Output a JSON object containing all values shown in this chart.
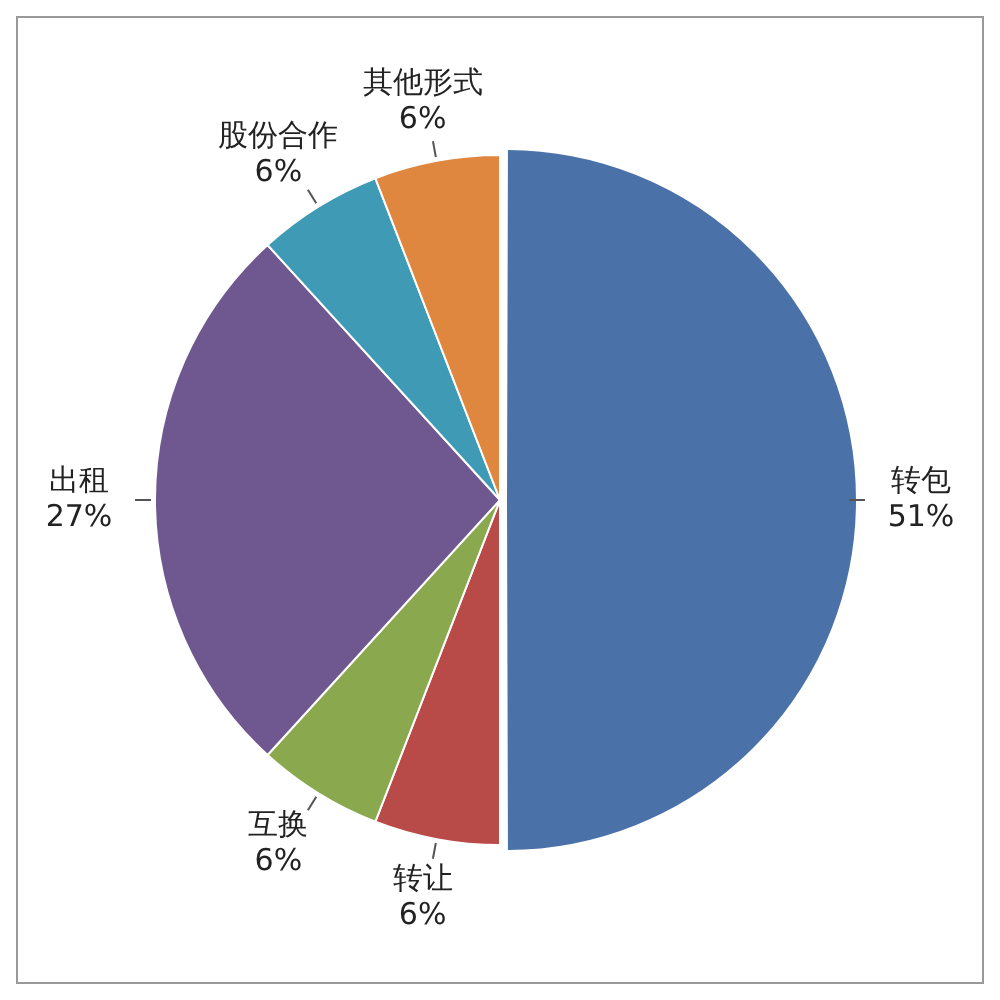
{
  "chart_data": {
    "type": "pie",
    "categories": [
      "转包",
      "转让",
      "互换",
      "出租",
      "股份合作",
      "其他形式"
    ],
    "values": [
      51,
      6,
      6,
      27,
      6,
      6
    ],
    "value_labels": [
      "51%",
      "6%",
      "6%",
      "27%",
      "6%",
      "6%"
    ],
    "colors": [
      "#4a72a8",
      "#b84a48",
      "#8aa84e",
      "#6f5890",
      "#3e9ab5",
      "#e0873f"
    ],
    "legend": false
  }
}
